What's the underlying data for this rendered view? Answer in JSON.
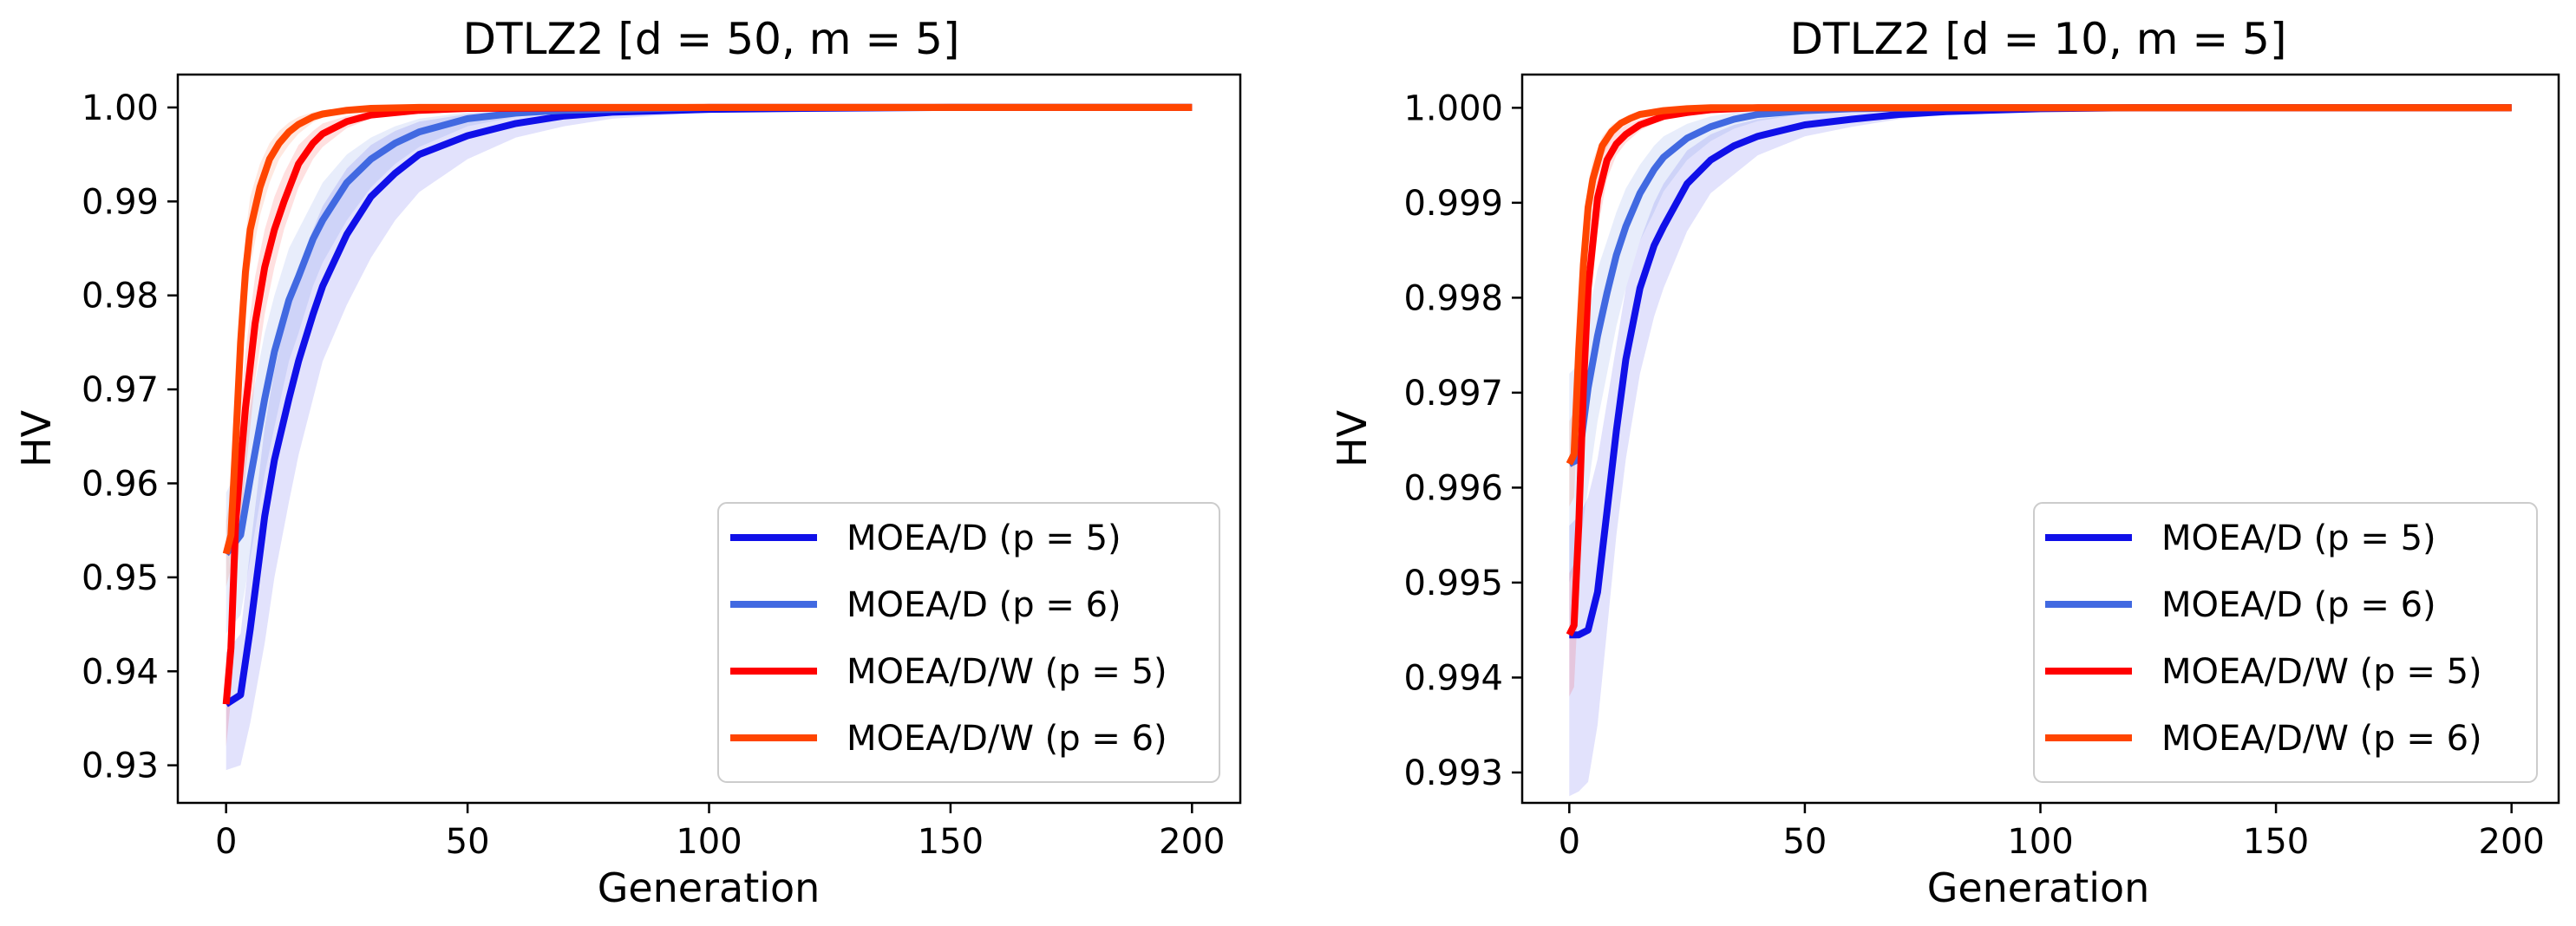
{
  "chart_data": [
    {
      "type": "line",
      "title": "DTLZ2 [d = 50, m = 5]",
      "xlabel": "Generation",
      "ylabel": "HV",
      "xlim": [
        -10,
        210
      ],
      "ylim": [
        0.926,
        1.0035
      ],
      "xticks": [
        0,
        50,
        100,
        150,
        200
      ],
      "xtick_labels": [
        "0",
        "50",
        "100",
        "150",
        "200"
      ],
      "yticks": [
        0.93,
        0.94,
        0.95,
        0.96,
        0.97,
        0.98,
        0.99,
        1.0
      ],
      "ytick_labels": [
        "0.93",
        "0.94",
        "0.95",
        "0.96",
        "0.97",
        "0.98",
        "0.99",
        "1.00"
      ],
      "legend_position": "lower-right",
      "series": [
        {
          "name": "MOEA/D (p = 5)",
          "legend_label": "MOEA/D (p = 5)",
          "color": "#1010e8",
          "x": [
            0,
            3,
            5,
            8,
            10,
            13,
            15,
            18,
            20,
            25,
            30,
            35,
            40,
            50,
            60,
            70,
            80,
            100,
            120,
            150,
            200
          ],
          "y": [
            0.9365,
            0.9375,
            0.9445,
            0.9565,
            0.9625,
            0.969,
            0.973,
            0.978,
            0.981,
            0.9865,
            0.9905,
            0.993,
            0.995,
            0.997,
            0.9983,
            0.9991,
            0.9995,
            0.9998,
            0.9999,
            1.0,
            1.0
          ],
          "band_lower": [
            0.9295,
            0.93,
            0.9345,
            0.943,
            0.95,
            0.958,
            0.963,
            0.969,
            0.973,
            0.979,
            0.984,
            0.988,
            0.991,
            0.9945,
            0.9968,
            0.998,
            0.9988,
            0.9995,
            0.9998,
            1.0,
            1.0
          ],
          "band_upper": [
            0.942,
            0.944,
            0.953,
            0.966,
            0.972,
            0.979,
            0.983,
            0.987,
            0.9895,
            0.9935,
            0.996,
            0.9975,
            0.9985,
            0.9993,
            0.9997,
            0.9999,
            1.0,
            1.0,
            1.0,
            1.0,
            1.0
          ]
        },
        {
          "name": "MOEA/D (p = 6)",
          "legend_label": "MOEA/D (p = 6)",
          "color": "#4169e1",
          "x": [
            0,
            3,
            5,
            8,
            10,
            13,
            15,
            18,
            20,
            25,
            30,
            35,
            40,
            50,
            60,
            70,
            100,
            150,
            200
          ],
          "y": [
            0.9525,
            0.9545,
            0.9605,
            0.969,
            0.974,
            0.9795,
            0.982,
            0.986,
            0.988,
            0.992,
            0.9945,
            0.9962,
            0.9974,
            0.9988,
            0.9994,
            0.9997,
            1.0,
            1.0,
            1.0
          ],
          "band_lower": [
            0.944,
            0.946,
            0.952,
            0.961,
            0.966,
            0.973,
            0.976,
            0.981,
            0.9835,
            0.988,
            0.9915,
            0.994,
            0.9958,
            0.998,
            0.999,
            0.9995,
            1.0,
            1.0,
            1.0
          ],
          "band_upper": [
            0.959,
            0.962,
            0.968,
            0.976,
            0.98,
            0.985,
            0.987,
            0.99,
            0.992,
            0.995,
            0.9968,
            0.998,
            0.9988,
            0.9995,
            0.9998,
            1.0,
            1.0,
            1.0,
            1.0
          ]
        },
        {
          "name": "MOEA/D/W (p = 5)",
          "legend_label": "MOEA/D/W (p = 5)",
          "color": "#ff0000",
          "x": [
            0,
            1,
            2,
            4,
            6,
            8,
            10,
            12,
            15,
            18,
            20,
            25,
            30,
            40,
            50,
            100,
            150,
            200
          ],
          "y": [
            0.9365,
            0.9425,
            0.956,
            0.968,
            0.977,
            0.983,
            0.987,
            0.99,
            0.994,
            0.9962,
            0.9972,
            0.9985,
            0.9992,
            0.9997,
            0.9999,
            1.0,
            1.0,
            1.0
          ],
          "band_lower": [
            0.932,
            0.937,
            0.949,
            0.961,
            0.971,
            0.978,
            0.983,
            0.987,
            0.9915,
            0.9945,
            0.9958,
            0.9978,
            0.9988,
            0.9995,
            0.9998,
            1.0,
            1.0,
            1.0
          ],
          "band_upper": [
            0.941,
            0.949,
            0.962,
            0.974,
            0.982,
            0.987,
            0.9905,
            0.993,
            0.996,
            0.9975,
            0.9983,
            0.9991,
            0.9996,
            0.9999,
            1.0,
            1.0,
            1.0,
            1.0
          ]
        },
        {
          "name": "MOEA/D/W (p = 6)",
          "legend_label": "MOEA/D/W (p = 6)",
          "color": "#ff4500",
          "x": [
            0,
            1,
            2,
            3,
            4,
            5,
            7,
            9,
            11,
            13,
            15,
            18,
            20,
            25,
            30,
            40,
            50,
            100,
            150,
            200
          ],
          "y": [
            0.9525,
            0.9545,
            0.9645,
            0.975,
            0.9825,
            0.987,
            0.9915,
            0.9945,
            0.9962,
            0.9974,
            0.9982,
            0.999,
            0.9993,
            0.9997,
            0.9999,
            1.0,
            1.0,
            1.0,
            1.0,
            1.0
          ],
          "band_lower": [
            0.949,
            0.951,
            0.96,
            0.97,
            0.978,
            0.983,
            0.9885,
            0.992,
            0.9945,
            0.996,
            0.9972,
            0.9984,
            0.9989,
            0.9995,
            0.9998,
            1.0,
            1.0,
            1.0,
            1.0,
            1.0
          ],
          "band_upper": [
            0.956,
            0.959,
            0.969,
            0.98,
            0.9865,
            0.9905,
            0.994,
            0.9962,
            0.9975,
            0.9984,
            0.999,
            0.9995,
            0.9997,
            0.9999,
            1.0,
            1.0,
            1.0,
            1.0,
            1.0,
            1.0
          ]
        }
      ]
    },
    {
      "type": "line",
      "title": "DTLZ2 [d = 10, m = 5]",
      "xlabel": "Generation",
      "ylabel": "HV",
      "xlim": [
        -10,
        210
      ],
      "ylim": [
        0.99268,
        1.00035
      ],
      "xticks": [
        0,
        50,
        100,
        150,
        200
      ],
      "xtick_labels": [
        "0",
        "50",
        "100",
        "150",
        "200"
      ],
      "yticks": [
        0.993,
        0.994,
        0.995,
        0.996,
        0.997,
        0.998,
        0.999,
        1.0
      ],
      "ytick_labels": [
        "0.993",
        "0.994",
        "0.995",
        "0.996",
        "0.997",
        "0.998",
        "0.999",
        "1.000"
      ],
      "legend_position": "lower-right",
      "series": [
        {
          "name": "MOEA/D (p = 5)",
          "legend_label": "MOEA/D (p = 5)",
          "color": "#1010e8",
          "x": [
            0,
            2,
            4,
            6,
            8,
            10,
            12,
            15,
            18,
            20,
            25,
            30,
            35,
            40,
            50,
            60,
            70,
            80,
            100,
            120,
            150,
            200
          ],
          "y": [
            0.99445,
            0.99445,
            0.9945,
            0.9949,
            0.99575,
            0.9966,
            0.99735,
            0.9981,
            0.99855,
            0.99875,
            0.9992,
            0.99945,
            0.9996,
            0.9997,
            0.99982,
            0.99988,
            0.99993,
            0.99996,
            0.99999,
            1.0,
            1.0,
            1.0
          ],
          "band_lower": [
            0.99275,
            0.9928,
            0.9929,
            0.9935,
            0.9945,
            0.9955,
            0.9963,
            0.9972,
            0.9978,
            0.9981,
            0.9987,
            0.9991,
            0.9993,
            0.9995,
            0.9997,
            0.9998,
            0.99988,
            0.99993,
            0.99998,
            1.0,
            1.0,
            1.0
          ],
          "band_upper": [
            0.9956,
            0.9957,
            0.9959,
            0.9963,
            0.9969,
            0.9975,
            0.9981,
            0.9986,
            0.999,
            0.9992,
            0.99955,
            0.99972,
            0.99982,
            0.99988,
            0.99994,
            0.99997,
            0.99999,
            1.0,
            1.0,
            1.0,
            1.0,
            1.0
          ]
        },
        {
          "name": "MOEA/D (p = 6)",
          "legend_label": "MOEA/D (p = 6)",
          "color": "#4169e1",
          "x": [
            0,
            2,
            4,
            6,
            8,
            10,
            12,
            15,
            18,
            20,
            25,
            30,
            35,
            40,
            50,
            60,
            80,
            100,
            150,
            200
          ],
          "y": [
            0.99625,
            0.9963,
            0.99705,
            0.9976,
            0.99805,
            0.99845,
            0.99875,
            0.9991,
            0.99935,
            0.99948,
            0.99968,
            0.9998,
            0.99988,
            0.99993,
            0.99997,
            0.99999,
            1.0,
            1.0,
            1.0,
            1.0
          ],
          "band_lower": [
            0.995,
            0.9953,
            0.996,
            0.9967,
            0.9972,
            0.9977,
            0.9981,
            0.9986,
            0.9989,
            0.99912,
            0.99945,
            0.99965,
            0.99978,
            0.99986,
            0.99994,
            0.99997,
            1.0,
            1.0,
            1.0,
            1.0
          ],
          "band_upper": [
            0.9972,
            0.9973,
            0.9978,
            0.9983,
            0.9986,
            0.9989,
            0.99915,
            0.9994,
            0.9996,
            0.9997,
            0.99983,
            0.99991,
            0.99995,
            0.99998,
            1.0,
            1.0,
            1.0,
            1.0,
            1.0,
            1.0
          ]
        },
        {
          "name": "MOEA/D/W (p = 5)",
          "legend_label": "MOEA/D/W (p = 5)",
          "color": "#ff0000",
          "x": [
            0,
            1,
            2,
            3,
            4,
            6,
            8,
            10,
            12,
            15,
            20,
            25,
            30,
            40,
            50,
            100,
            150,
            200
          ],
          "y": [
            0.99445,
            0.99455,
            0.9956,
            0.99705,
            0.9981,
            0.99905,
            0.99945,
            0.99962,
            0.99972,
            0.99982,
            0.99991,
            0.99995,
            0.99998,
            1.0,
            1.0,
            1.0,
            1.0,
            1.0
          ],
          "band_lower": [
            0.9938,
            0.9939,
            0.9949,
            0.9964,
            0.9976,
            0.9987,
            0.99925,
            0.9995,
            0.99963,
            0.99976,
            0.99988,
            0.99993,
            0.99997,
            1.0,
            1.0,
            1.0,
            1.0,
            1.0
          ],
          "band_upper": [
            0.9951,
            0.9952,
            0.9963,
            0.9977,
            0.9986,
            0.99935,
            0.99965,
            0.99975,
            0.99982,
            0.99988,
            0.99995,
            0.99998,
            1.0,
            1.0,
            1.0,
            1.0,
            1.0,
            1.0
          ]
        },
        {
          "name": "MOEA/D/W (p = 6)",
          "legend_label": "MOEA/D/W (p = 6)",
          "color": "#ff4500",
          "x": [
            0,
            1,
            2,
            3,
            4,
            5,
            7,
            9,
            11,
            13,
            15,
            20,
            25,
            30,
            40,
            50,
            100,
            150,
            200
          ],
          "y": [
            0.99625,
            0.99635,
            0.99745,
            0.99835,
            0.99895,
            0.99925,
            0.9996,
            0.99975,
            0.99984,
            0.99989,
            0.99993,
            0.99997,
            0.99999,
            1.0,
            1.0,
            1.0,
            1.0,
            1.0,
            1.0
          ],
          "band_lower": [
            0.9958,
            0.9959,
            0.997,
            0.998,
            0.9987,
            0.9991,
            0.99948,
            0.99968,
            0.9998,
            0.99986,
            0.99991,
            0.99996,
            0.99998,
            1.0,
            1.0,
            1.0,
            1.0,
            1.0,
            1.0
          ],
          "band_upper": [
            0.9967,
            0.9968,
            0.9979,
            0.9987,
            0.9992,
            0.99945,
            0.9997,
            0.99982,
            0.99988,
            0.99992,
            0.99995,
            0.99998,
            1.0,
            1.0,
            1.0,
            1.0,
            1.0,
            1.0,
            1.0
          ]
        }
      ]
    }
  ]
}
